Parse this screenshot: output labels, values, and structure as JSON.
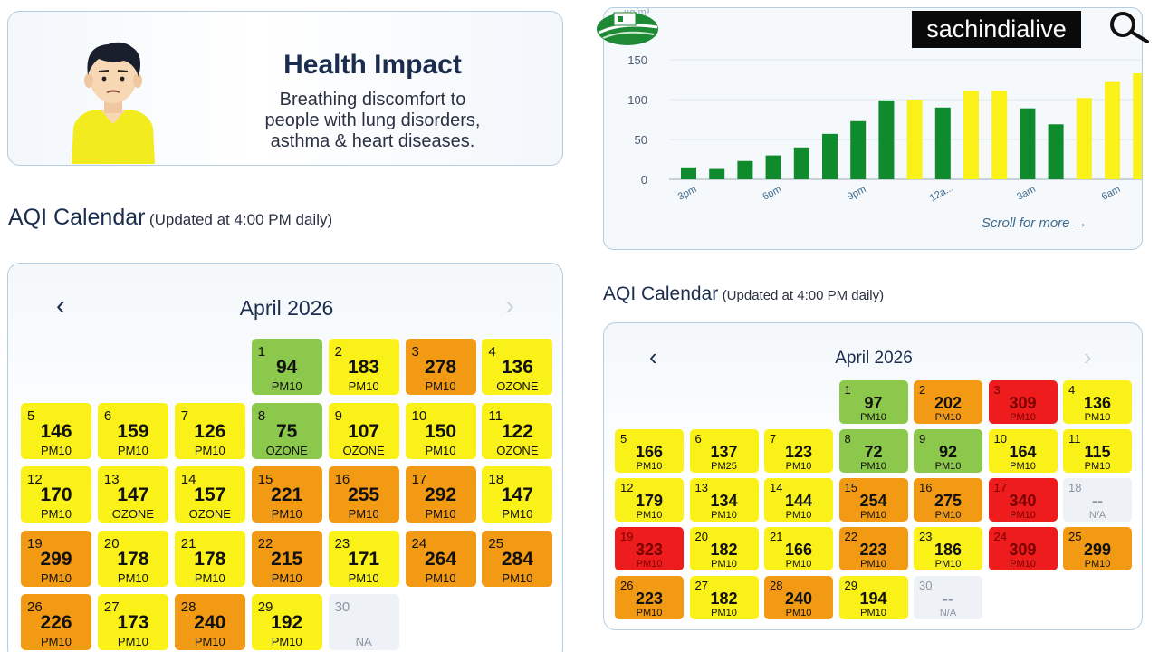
{
  "colors": {
    "good": "#8cc84b",
    "satisfactory_bar": "#0f8a2c",
    "moderate": "#f9f117",
    "poor": "#f39a15",
    "very_poor": "#ee1c1c",
    "na": "#eef2f6"
  },
  "health": {
    "title": "Health Impact",
    "lines": [
      "Breathing discomfort to",
      "people with lung disorders,",
      "asthma & heart diseases."
    ],
    "avatar_icon": "person-avatar-icon"
  },
  "left_calendar": {
    "heading": "AQI Calendar",
    "updated": "(Updated at 4:00 PM daily)",
    "month": "April 2026",
    "prev": "‹",
    "next": "›",
    "start_weekday": 3,
    "days": [
      {
        "d": "1",
        "v": "94",
        "p": "PM10",
        "c": "good"
      },
      {
        "d": "2",
        "v": "183",
        "p": "PM10",
        "c": "moderate"
      },
      {
        "d": "3",
        "v": "278",
        "p": "PM10",
        "c": "poor"
      },
      {
        "d": "4",
        "v": "136",
        "p": "OZONE",
        "c": "moderate"
      },
      {
        "d": "5",
        "v": "146",
        "p": "PM10",
        "c": "moderate"
      },
      {
        "d": "6",
        "v": "159",
        "p": "PM10",
        "c": "moderate"
      },
      {
        "d": "7",
        "v": "126",
        "p": "PM10",
        "c": "moderate"
      },
      {
        "d": "8",
        "v": "75",
        "p": "OZONE",
        "c": "good"
      },
      {
        "d": "9",
        "v": "107",
        "p": "OZONE",
        "c": "moderate"
      },
      {
        "d": "10",
        "v": "150",
        "p": "PM10",
        "c": "moderate"
      },
      {
        "d": "11",
        "v": "122",
        "p": "OZONE",
        "c": "moderate"
      },
      {
        "d": "12",
        "v": "170",
        "p": "PM10",
        "c": "moderate"
      },
      {
        "d": "13",
        "v": "147",
        "p": "OZONE",
        "c": "moderate"
      },
      {
        "d": "14",
        "v": "157",
        "p": "OZONE",
        "c": "moderate"
      },
      {
        "d": "15",
        "v": "221",
        "p": "PM10",
        "c": "poor"
      },
      {
        "d": "16",
        "v": "255",
        "p": "PM10",
        "c": "poor"
      },
      {
        "d": "17",
        "v": "292",
        "p": "PM10",
        "c": "poor"
      },
      {
        "d": "18",
        "v": "147",
        "p": "PM10",
        "c": "moderate"
      },
      {
        "d": "19",
        "v": "299",
        "p": "PM10",
        "c": "poor"
      },
      {
        "d": "20",
        "v": "178",
        "p": "PM10",
        "c": "moderate"
      },
      {
        "d": "21",
        "v": "178",
        "p": "PM10",
        "c": "moderate"
      },
      {
        "d": "22",
        "v": "215",
        "p": "PM10",
        "c": "poor"
      },
      {
        "d": "23",
        "v": "171",
        "p": "PM10",
        "c": "moderate"
      },
      {
        "d": "24",
        "v": "264",
        "p": "PM10",
        "c": "poor"
      },
      {
        "d": "25",
        "v": "284",
        "p": "PM10",
        "c": "poor"
      },
      {
        "d": "26",
        "v": "226",
        "p": "PM10",
        "c": "poor"
      },
      {
        "d": "27",
        "v": "173",
        "p": "PM10",
        "c": "moderate"
      },
      {
        "d": "28",
        "v": "240",
        "p": "PM10",
        "c": "poor"
      },
      {
        "d": "29",
        "v": "192",
        "p": "PM10",
        "c": "moderate"
      },
      {
        "d": "30",
        "v": "",
        "p": "NA",
        "c": "na"
      }
    ]
  },
  "right_calendar": {
    "heading": "AQI Calendar",
    "updated": "(Updated at 4:00 PM daily)",
    "month": "April 2026",
    "prev": "‹",
    "next": "›",
    "start_weekday": 3,
    "days": [
      {
        "d": "1",
        "v": "97",
        "p": "PM10",
        "c": "good"
      },
      {
        "d": "2",
        "v": "202",
        "p": "PM10",
        "c": "poor"
      },
      {
        "d": "3",
        "v": "309",
        "p": "PM10",
        "c": "very_poor"
      },
      {
        "d": "4",
        "v": "136",
        "p": "PM10",
        "c": "moderate"
      },
      {
        "d": "5",
        "v": "166",
        "p": "PM10",
        "c": "moderate"
      },
      {
        "d": "6",
        "v": "137",
        "p": "PM25",
        "c": "moderate"
      },
      {
        "d": "7",
        "v": "123",
        "p": "PM10",
        "c": "moderate"
      },
      {
        "d": "8",
        "v": "72",
        "p": "PM10",
        "c": "good"
      },
      {
        "d": "9",
        "v": "92",
        "p": "PM10",
        "c": "good"
      },
      {
        "d": "10",
        "v": "164",
        "p": "PM10",
        "c": "moderate"
      },
      {
        "d": "11",
        "v": "115",
        "p": "PM10",
        "c": "moderate"
      },
      {
        "d": "12",
        "v": "179",
        "p": "PM10",
        "c": "moderate"
      },
      {
        "d": "13",
        "v": "134",
        "p": "PM10",
        "c": "moderate"
      },
      {
        "d": "14",
        "v": "144",
        "p": "PM10",
        "c": "moderate"
      },
      {
        "d": "15",
        "v": "254",
        "p": "PM10",
        "c": "poor"
      },
      {
        "d": "16",
        "v": "275",
        "p": "PM10",
        "c": "poor"
      },
      {
        "d": "17",
        "v": "340",
        "p": "PM10",
        "c": "very_poor"
      },
      {
        "d": "18",
        "v": "--",
        "p": "N/A",
        "c": "na"
      },
      {
        "d": "19",
        "v": "323",
        "p": "PM10",
        "c": "very_poor"
      },
      {
        "d": "20",
        "v": "182",
        "p": "PM10",
        "c": "moderate"
      },
      {
        "d": "21",
        "v": "166",
        "p": "PM10",
        "c": "moderate"
      },
      {
        "d": "22",
        "v": "223",
        "p": "PM10",
        "c": "poor"
      },
      {
        "d": "23",
        "v": "186",
        "p": "PM10",
        "c": "moderate"
      },
      {
        "d": "24",
        "v": "309",
        "p": "PM10",
        "c": "very_poor"
      },
      {
        "d": "25",
        "v": "299",
        "p": "PM10",
        "c": "poor"
      },
      {
        "d": "26",
        "v": "223",
        "p": "PM10",
        "c": "poor"
      },
      {
        "d": "27",
        "v": "182",
        "p": "PM10",
        "c": "moderate"
      },
      {
        "d": "28",
        "v": "240",
        "p": "PM10",
        "c": "poor"
      },
      {
        "d": "29",
        "v": "194",
        "p": "PM10",
        "c": "moderate"
      },
      {
        "d": "30",
        "v": "--",
        "p": "N/A",
        "c": "na"
      }
    ]
  },
  "chart_panel": {
    "scroll_more": "Scroll for more →",
    "logo_icon": "station-logo-icon",
    "brand": "sachindialive",
    "search_icon": "search-icon"
  },
  "chart_data": {
    "type": "bar",
    "unit_label": "µg/m³",
    "y_ticks": [
      "0",
      "50",
      "100",
      "150"
    ],
    "ylim": [
      0,
      175
    ],
    "x_tick_labels": [
      "3pm",
      "6pm",
      "9pm",
      "12a...",
      "3am",
      "6am"
    ],
    "x_tick_index": [
      0,
      3,
      6,
      9,
      12,
      15
    ],
    "values": [
      15,
      13,
      23,
      30,
      40,
      57,
      73,
      99,
      100,
      90,
      111,
      111,
      89,
      69,
      102,
      123,
      133
    ],
    "bar_colors": [
      "satisfactory_bar",
      "satisfactory_bar",
      "satisfactory_bar",
      "satisfactory_bar",
      "satisfactory_bar",
      "satisfactory_bar",
      "satisfactory_bar",
      "satisfactory_bar",
      "moderate",
      "satisfactory_bar",
      "moderate",
      "moderate",
      "satisfactory_bar",
      "satisfactory_bar",
      "moderate",
      "moderate",
      "moderate"
    ],
    "grid": true
  }
}
